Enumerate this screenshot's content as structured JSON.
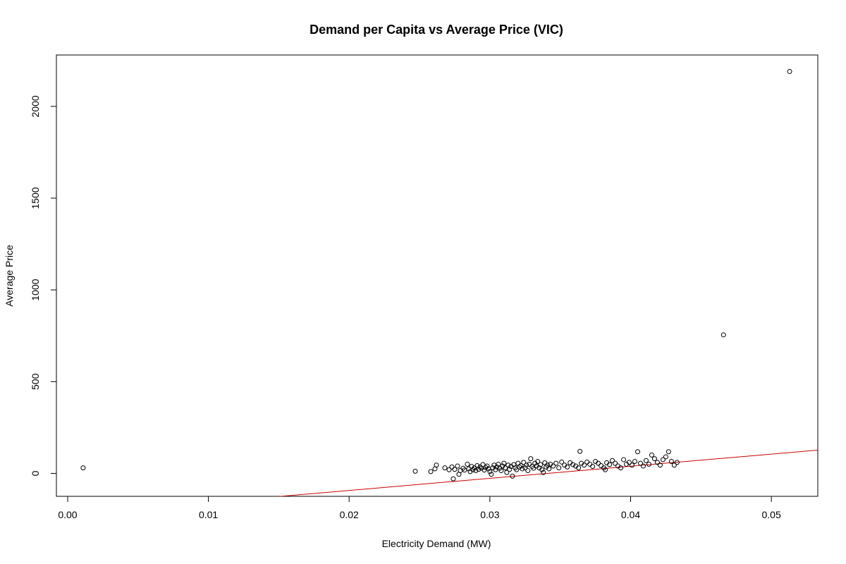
{
  "chart_data": {
    "type": "scatter",
    "title": "Demand per Capita vs Average Price (VIC)",
    "xlabel": "Electricity Demand (MW)",
    "ylabel": "Average Price",
    "xlim": [
      -0.0008,
      0.0533
    ],
    "ylim": [
      -125,
      2280
    ],
    "x_ticks": [
      0.0,
      0.01,
      0.02,
      0.03,
      0.04,
      0.05
    ],
    "x_tick_labels": [
      "0.00",
      "0.01",
      "0.02",
      "0.03",
      "0.04",
      "0.05"
    ],
    "y_ticks": [
      0,
      500,
      1000,
      1500,
      2000
    ],
    "y_tick_labels": [
      "0",
      "500",
      "1000",
      "1500",
      "2000"
    ],
    "grid": false,
    "legend": "none",
    "point_color": "#000000",
    "regression_line": {
      "color": "#cc0000",
      "slope": 6600,
      "intercept": -225
    },
    "series": [
      {
        "points": [
          [
            0.0011,
            30
          ],
          [
            0.0247,
            12
          ],
          [
            0.0258,
            10
          ],
          [
            0.0261,
            25
          ],
          [
            0.0262,
            45
          ],
          [
            0.0268,
            30
          ],
          [
            0.0271,
            20
          ],
          [
            0.0273,
            35
          ],
          [
            0.0274,
            -30
          ],
          [
            0.0275,
            22
          ],
          [
            0.0277,
            40
          ],
          [
            0.0278,
            -5
          ],
          [
            0.0279,
            15
          ],
          [
            0.0281,
            28
          ],
          [
            0.0282,
            18
          ],
          [
            0.0284,
            50
          ],
          [
            0.0285,
            25
          ],
          [
            0.0286,
            10
          ],
          [
            0.0287,
            38
          ],
          [
            0.0288,
            20
          ],
          [
            0.0289,
            30
          ],
          [
            0.029,
            15
          ],
          [
            0.0291,
            42
          ],
          [
            0.0292,
            22
          ],
          [
            0.0293,
            35
          ],
          [
            0.0294,
            28
          ],
          [
            0.0295,
            48
          ],
          [
            0.0296,
            18
          ],
          [
            0.0297,
            32
          ],
          [
            0.0298,
            40
          ],
          [
            0.0299,
            25
          ],
          [
            0.03,
            10
          ],
          [
            0.0301,
            -5
          ],
          [
            0.0302,
            30
          ],
          [
            0.0303,
            45
          ],
          [
            0.0304,
            20
          ],
          [
            0.0305,
            35
          ],
          [
            0.0306,
            50
          ],
          [
            0.0307,
            28
          ],
          [
            0.0308,
            15
          ],
          [
            0.0309,
            40
          ],
          [
            0.031,
            55
          ],
          [
            0.0311,
            30
          ],
          [
            0.0312,
            5
          ],
          [
            0.0313,
            45
          ],
          [
            0.0314,
            22
          ],
          [
            0.0315,
            38
          ],
          [
            0.0316,
            -15
          ],
          [
            0.0317,
            48
          ],
          [
            0.0318,
            30
          ],
          [
            0.0319,
            20
          ],
          [
            0.032,
            55
          ],
          [
            0.0321,
            35
          ],
          [
            0.0322,
            42
          ],
          [
            0.0323,
            25
          ],
          [
            0.0324,
            60
          ],
          [
            0.0325,
            30
          ],
          [
            0.0326,
            45
          ],
          [
            0.0327,
            15
          ],
          [
            0.0328,
            50
          ],
          [
            0.0329,
            80
          ],
          [
            0.033,
            38
          ],
          [
            0.0331,
            28
          ],
          [
            0.0332,
            55
          ],
          [
            0.0333,
            40
          ],
          [
            0.0334,
            65
          ],
          [
            0.0335,
            30
          ],
          [
            0.0336,
            48
          ],
          [
            0.0337,
            20
          ],
          [
            0.0338,
            5
          ],
          [
            0.0339,
            58
          ],
          [
            0.034,
            35
          ],
          [
            0.0341,
            45
          ],
          [
            0.0342,
            25
          ],
          [
            0.0343,
            50
          ],
          [
            0.0345,
            40
          ],
          [
            0.0347,
            55
          ],
          [
            0.0349,
            30
          ],
          [
            0.0351,
            62
          ],
          [
            0.0353,
            45
          ],
          [
            0.0355,
            35
          ],
          [
            0.0357,
            58
          ],
          [
            0.0359,
            48
          ],
          [
            0.0361,
            40
          ],
          [
            0.0363,
            30
          ],
          [
            0.0364,
            120
          ],
          [
            0.0365,
            55
          ],
          [
            0.0367,
            45
          ],
          [
            0.0369,
            62
          ],
          [
            0.0371,
            50
          ],
          [
            0.0373,
            38
          ],
          [
            0.0375,
            65
          ],
          [
            0.0377,
            55
          ],
          [
            0.0379,
            42
          ],
          [
            0.0381,
            30
          ],
          [
            0.0382,
            20
          ],
          [
            0.0383,
            58
          ],
          [
            0.0385,
            48
          ],
          [
            0.0387,
            70
          ],
          [
            0.0389,
            55
          ],
          [
            0.0391,
            40
          ],
          [
            0.0393,
            30
          ],
          [
            0.0395,
            75
          ],
          [
            0.0397,
            50
          ],
          [
            0.0399,
            60
          ],
          [
            0.0401,
            45
          ],
          [
            0.0403,
            65
          ],
          [
            0.0405,
            118
          ],
          [
            0.0407,
            55
          ],
          [
            0.0409,
            40
          ],
          [
            0.0411,
            70
          ],
          [
            0.0413,
            50
          ],
          [
            0.0415,
            100
          ],
          [
            0.0417,
            80
          ],
          [
            0.0419,
            60
          ],
          [
            0.0421,
            45
          ],
          [
            0.0423,
            75
          ],
          [
            0.0425,
            90
          ],
          [
            0.0427,
            118
          ],
          [
            0.0429,
            65
          ],
          [
            0.0431,
            45
          ],
          [
            0.0433,
            60
          ],
          [
            0.0466,
            755
          ],
          [
            0.0513,
            2190
          ]
        ]
      }
    ]
  }
}
